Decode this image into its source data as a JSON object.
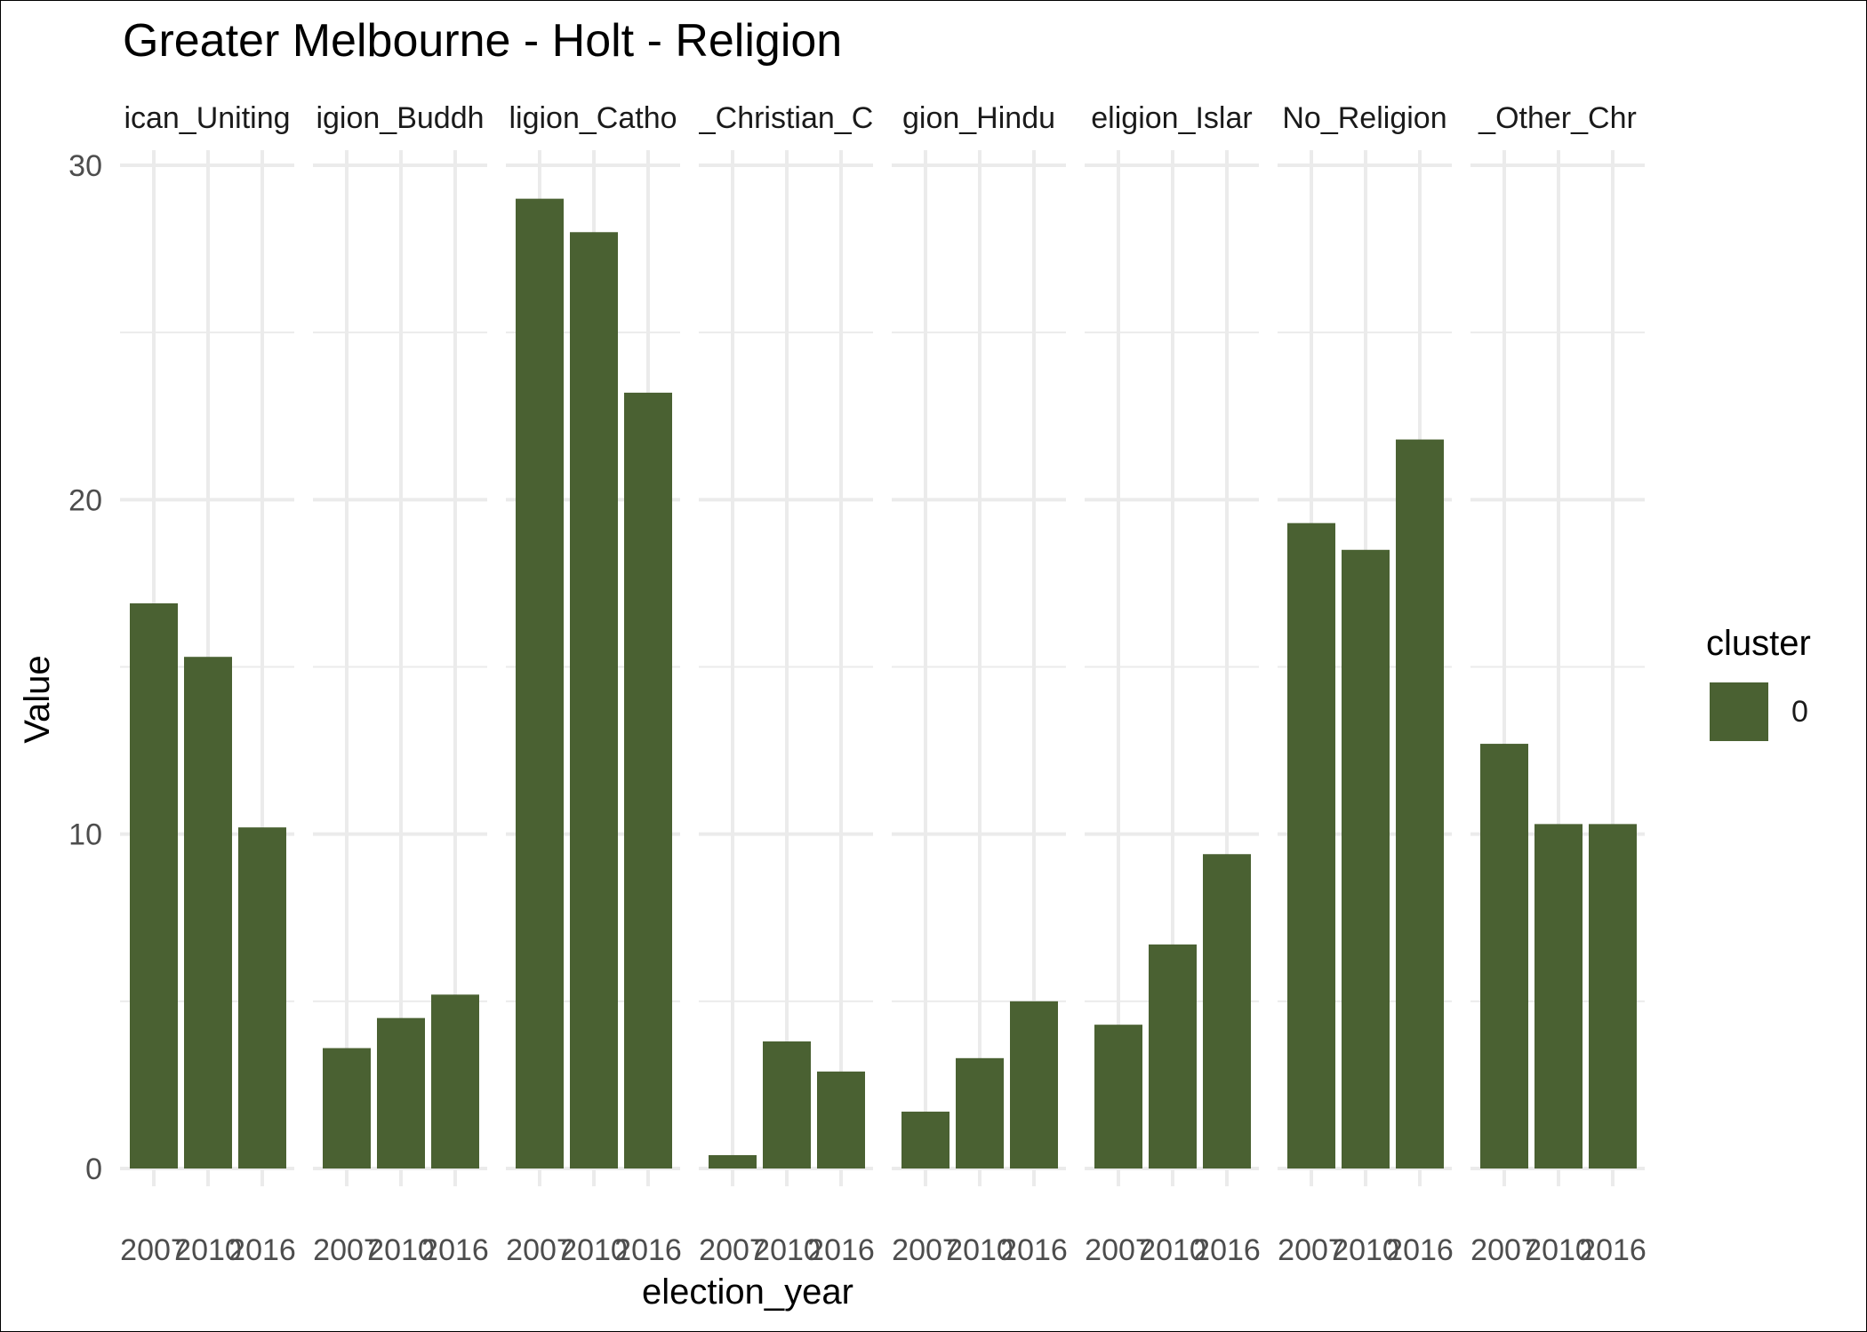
{
  "chart_data": {
    "type": "bar",
    "title": "Greater Melbourne - Holt - Religion",
    "xlabel": "election_year",
    "ylabel": "Value",
    "ylim": [
      0,
      30
    ],
    "y_ticks": [
      0,
      10,
      20,
      30
    ],
    "grid": true,
    "categories": [
      "2007",
      "2010",
      "2016"
    ],
    "facets": [
      {
        "label": "ican_Uniting",
        "values": [
          16.9,
          15.3,
          10.2
        ]
      },
      {
        "label": "igion_Buddh",
        "values": [
          3.6,
          4.5,
          5.2
        ]
      },
      {
        "label": "ligion_Catho",
        "values": [
          29.0,
          28.0,
          23.2
        ]
      },
      {
        "label": "_Christian_C",
        "values": [
          0.4,
          3.8,
          2.9
        ]
      },
      {
        "label": "gion_Hindu",
        "values": [
          1.7,
          3.3,
          5.0
        ]
      },
      {
        "label": "eligion_Islar",
        "values": [
          4.3,
          6.7,
          9.4
        ]
      },
      {
        "label": "No_Religion",
        "values": [
          19.3,
          18.5,
          21.8
        ]
      },
      {
        "label": "_Other_Chr",
        "values": [
          12.7,
          10.3,
          10.3
        ]
      }
    ],
    "legend": {
      "title": "cluster",
      "placement": "right",
      "entries": [
        {
          "label": "0",
          "color": "#4a6132"
        }
      ]
    },
    "bar_color": "#4a6132",
    "grid_color": "#ebebeb"
  }
}
